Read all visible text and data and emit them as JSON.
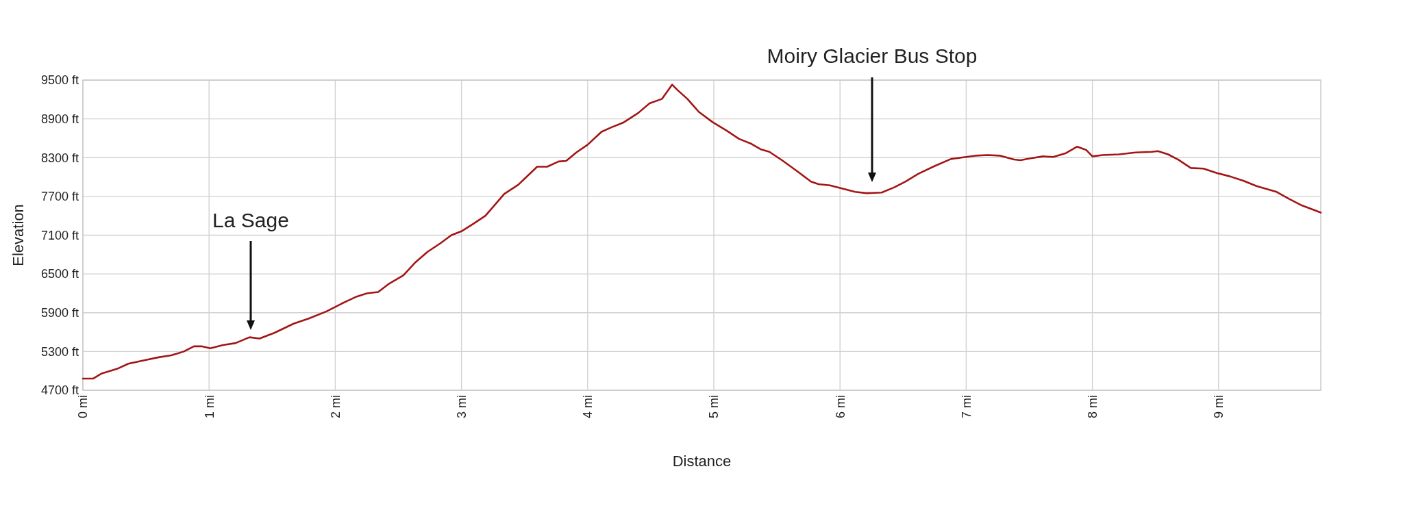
{
  "chart_data": {
    "type": "line",
    "xlabel": "Distance",
    "ylabel": "Elevation",
    "grid": true,
    "color": "#a31515",
    "xlim": [
      0,
      9.81
    ],
    "xticks": [
      {
        "value": 0,
        "label": "0 mi"
      },
      {
        "value": 1,
        "label": "1 mi"
      },
      {
        "value": 2,
        "label": "2 mi"
      },
      {
        "value": 3,
        "label": "3 mi"
      },
      {
        "value": 4,
        "label": "4 mi"
      },
      {
        "value": 5,
        "label": "5 mi"
      },
      {
        "value": 6,
        "label": "6 mi"
      },
      {
        "value": 7,
        "label": "7 mi"
      },
      {
        "value": 8,
        "label": "8 mi"
      },
      {
        "value": 9,
        "label": "9 mi"
      }
    ],
    "ylim": [
      4700,
      9500
    ],
    "yticks": [
      {
        "value": 4700,
        "label": "4700 ft"
      },
      {
        "value": 5300,
        "label": "5300 ft"
      },
      {
        "value": 5900,
        "label": "5900 ft"
      },
      {
        "value": 6500,
        "label": "6500 ft"
      },
      {
        "value": 7100,
        "label": "7100 ft"
      },
      {
        "value": 7700,
        "label": "7700 ft"
      },
      {
        "value": 8300,
        "label": "8300 ft"
      },
      {
        "value": 8900,
        "label": "8900 ft"
      },
      {
        "value": 9500,
        "label": "9500 ft"
      }
    ],
    "annotations": [
      "La Sage",
      "Moiry Glacier Bus Stop"
    ],
    "x": [
      0,
      0.08,
      0.15,
      0.27,
      0.36,
      0.48,
      0.6,
      0.7,
      0.8,
      0.88,
      0.94,
      1.01,
      1.11,
      1.21,
      1.32,
      1.4,
      1.52,
      1.67,
      1.79,
      1.93,
      2.05,
      2.17,
      2.25,
      2.34,
      2.42,
      2.54,
      2.63,
      2.73,
      2.83,
      2.92,
      3.0,
      3.09,
      3.19,
      3.34,
      3.45,
      3.6,
      3.68,
      3.77,
      3.83,
      3.91,
      4.0,
      4.11,
      4.19,
      4.28,
      4.4,
      4.49,
      4.59,
      4.67,
      4.71,
      4.79,
      4.88,
      4.99,
      5.1,
      5.2,
      5.29,
      5.37,
      5.44,
      5.54,
      5.66,
      5.77,
      5.83,
      5.92,
      6.02,
      6.12,
      6.21,
      6.33,
      6.43,
      6.52,
      6.62,
      6.75,
      6.88,
      7.0,
      7.07,
      7.17,
      7.27,
      7.38,
      7.43,
      7.51,
      7.61,
      7.69,
      7.79,
      7.88,
      7.95,
      8.0,
      8.08,
      8.21,
      8.34,
      8.47,
      8.52,
      8.6,
      8.68,
      8.78,
      8.88,
      8.99,
      9.09,
      9.2,
      9.3,
      9.46,
      9.56,
      9.66,
      9.81
    ],
    "values": [
      4880,
      4880,
      4960,
      5030,
      5110,
      5160,
      5210,
      5240,
      5300,
      5380,
      5380,
      5350,
      5400,
      5430,
      5520,
      5500,
      5590,
      5730,
      5810,
      5920,
      6040,
      6150,
      6200,
      6220,
      6340,
      6480,
      6670,
      6840,
      6970,
      7100,
      7160,
      7270,
      7400,
      7740,
      7880,
      8160,
      8160,
      8240,
      8250,
      8380,
      8500,
      8700,
      8770,
      8840,
      8990,
      9140,
      9210,
      9430,
      9350,
      9210,
      9010,
      8850,
      8720,
      8590,
      8520,
      8430,
      8390,
      8260,
      8090,
      7930,
      7890,
      7870,
      7820,
      7770,
      7750,
      7760,
      7840,
      7930,
      8050,
      8170,
      8280,
      8310,
      8330,
      8340,
      8330,
      8270,
      8260,
      8290,
      8320,
      8310,
      8370,
      8470,
      8420,
      8320,
      8340,
      8350,
      8380,
      8390,
      8400,
      8350,
      8270,
      8140,
      8130,
      8060,
      8010,
      7940,
      7860,
      7770,
      7660,
      7560,
      7450
    ]
  }
}
